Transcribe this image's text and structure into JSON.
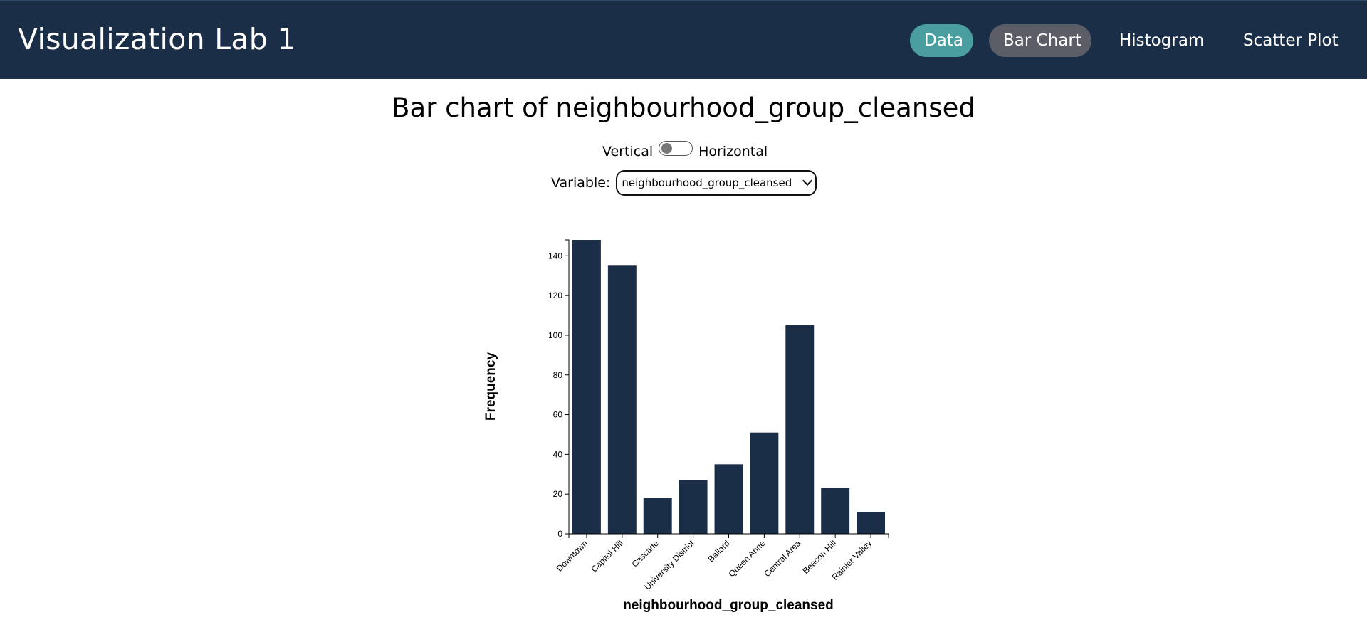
{
  "header": {
    "app_title": "Visualization Lab 1",
    "nav": {
      "data": "Data",
      "bar_chart": "Bar Chart",
      "histogram": "Histogram",
      "scatter_plot": "Scatter Plot"
    },
    "active_tab": "Bar Chart"
  },
  "page": {
    "title": "Bar chart of neighbourhood_group_cleansed",
    "orientation": {
      "left_label": "Vertical",
      "right_label": "Horizontal",
      "is_horizontal": false
    },
    "variable": {
      "label": "Variable:",
      "selected": "neighbourhood_group_cleansed"
    }
  },
  "colors": {
    "header_bg": "#1b2e48",
    "data_pill": "#4a9ea0",
    "active_pill": "#5b5e66",
    "bar": "#1b2e48"
  },
  "chart_data": {
    "type": "bar",
    "categories": [
      "Downtown",
      "Capitol Hill",
      "Cascade",
      "University District",
      "Ballard",
      "Queen Anne",
      "Central Area",
      "Beacon Hill",
      "Rainier Valley"
    ],
    "values": [
      148,
      135,
      18,
      27,
      35,
      51,
      105,
      23,
      11
    ],
    "xlabel": "neighbourhood_group_cleansed",
    "ylabel": "Frequency",
    "ylim": [
      0,
      148
    ],
    "yticks": [
      0,
      20,
      40,
      60,
      80,
      100,
      120,
      140
    ]
  }
}
